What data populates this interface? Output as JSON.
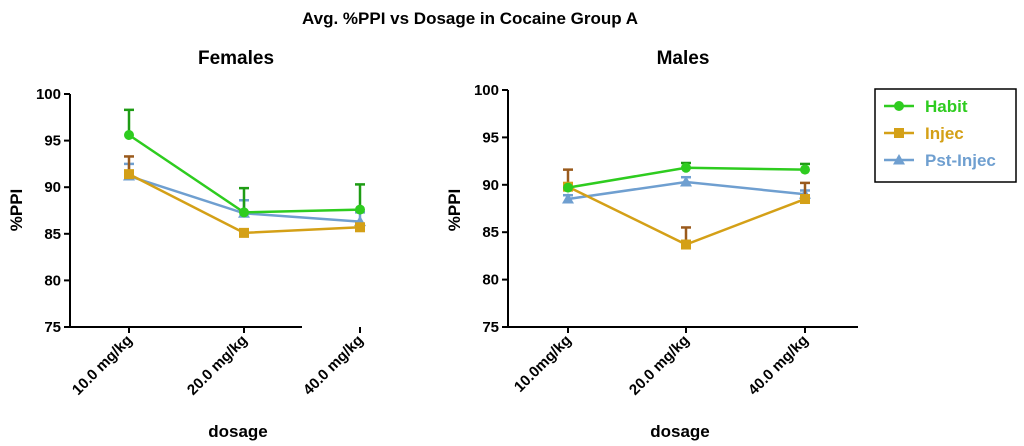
{
  "figure": {
    "title": "Avg. %PPI vs  Dosage in Cocaine Group A"
  },
  "colors": {
    "Habit": "#2ecc1f",
    "Injec": "#d4a017",
    "Pst-Injec": "#6f9fd0",
    "Injec_errorbar": "#9a5a1c",
    "Habit_errorbar": "#1e9c14"
  },
  "legend": {
    "position": "top-right",
    "items": [
      {
        "name": "Habit",
        "marker": "circle"
      },
      {
        "name": "Injec",
        "marker": "square"
      },
      {
        "name": "Pst-Injec",
        "marker": "triangle"
      }
    ]
  },
  "chart_data": [
    {
      "type": "line",
      "title": "Females",
      "xlabel": "dosage",
      "ylabel": "%PPI",
      "categories": [
        "10.0 mg/kg",
        "20.0 mg/kg",
        "40.0 mg/kg"
      ],
      "ylim": [
        75,
        100
      ],
      "yticks": [
        "75",
        "80",
        "85",
        "90",
        "95",
        "100"
      ],
      "grid": false,
      "series": [
        {
          "name": "Habit",
          "marker": "circle",
          "values": [
            95.6,
            87.3,
            87.6
          ],
          "error": [
            2.7,
            2.6,
            2.7
          ]
        },
        {
          "name": "Injec",
          "marker": "square",
          "values": [
            91.4,
            85.1,
            85.7
          ],
          "error": [
            1.9,
            0,
            0
          ]
        },
        {
          "name": "Pst-Injec",
          "marker": "triangle",
          "values": [
            91.2,
            87.2,
            86.3
          ],
          "error": [
            1.3,
            1.4,
            1.0
          ]
        }
      ]
    },
    {
      "type": "line",
      "title": "Males",
      "xlabel": "dosage",
      "ylabel": "%PPI",
      "categories": [
        "10.0mg/kg",
        "20.0 mg/kg",
        "40.0 mg/kg"
      ],
      "ylim": [
        75,
        100
      ],
      "yticks": [
        "75",
        "80",
        "85",
        "90",
        "95",
        "100"
      ],
      "grid": false,
      "series": [
        {
          "name": "Habit",
          "marker": "circle",
          "values": [
            89.7,
            91.8,
            91.6
          ],
          "error": [
            0,
            0.5,
            0.6
          ]
        },
        {
          "name": "Injec",
          "marker": "square",
          "values": [
            89.8,
            83.7,
            88.5
          ],
          "error": [
            1.8,
            1.8,
            1.7
          ]
        },
        {
          "name": "Pst-Injec",
          "marker": "triangle",
          "values": [
            88.5,
            90.3,
            89.0
          ],
          "error": [
            0.4,
            0.5,
            0.4
          ]
        }
      ]
    }
  ]
}
